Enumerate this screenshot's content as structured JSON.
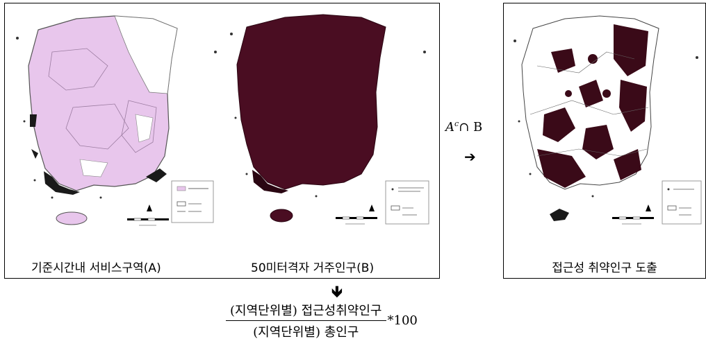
{
  "panels": {
    "left": {
      "map_a_caption": "기준시간내 서비스구역(A)",
      "map_b_caption": "50미터격자 거주인구(B)"
    },
    "right": {
      "caption": "접근성 취약인구 도출"
    }
  },
  "operation": {
    "label_base": "A",
    "label_superscript": "c",
    "label_rest": "∩ B",
    "arrow_right": "➔",
    "arrow_down": "🡻"
  },
  "formula": {
    "numerator": "(지역단위별) 접근성취약인구",
    "denominator": "(지역단위별) 총인구",
    "multiplier": "*100"
  },
  "colors": {
    "service_area": "#e8c6ec",
    "population": "#4a0d22",
    "vulnerable": "#3a0a18",
    "outline": "#555555"
  }
}
